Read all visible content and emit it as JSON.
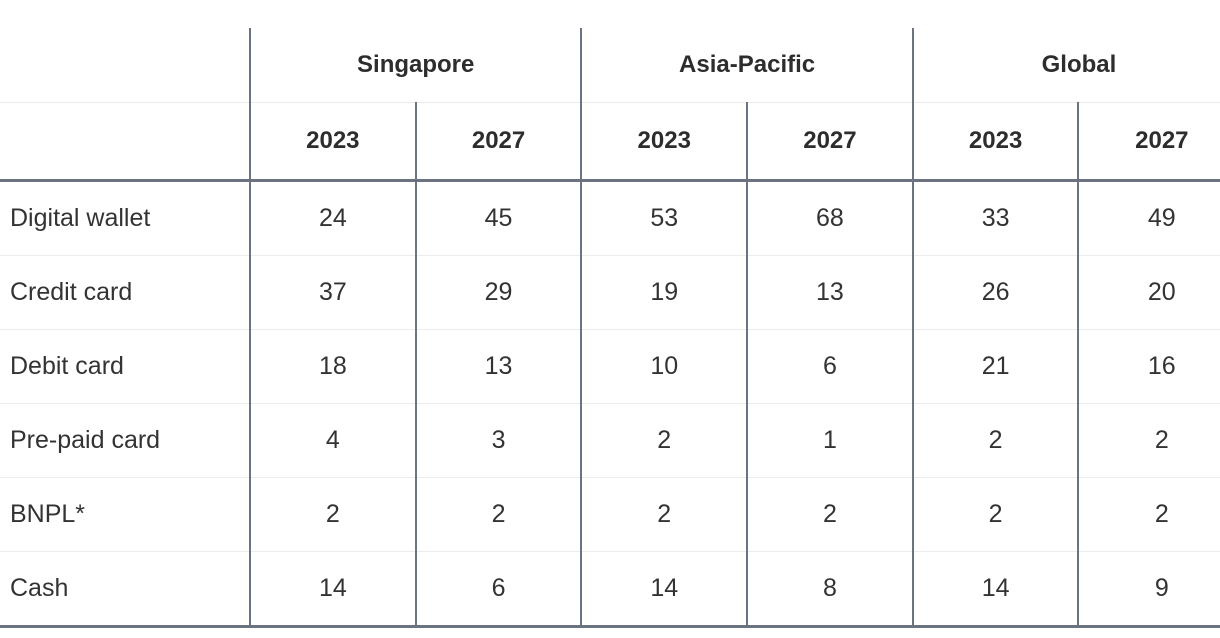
{
  "table": {
    "groups": [
      {
        "label": "Singapore"
      },
      {
        "label": "Asia-Pacific"
      },
      {
        "label": "Global"
      }
    ],
    "year_headers": [
      "2023",
      "2027",
      "2023",
      "2027",
      "2023",
      "2027"
    ],
    "rows": [
      {
        "label": "Digital wallet",
        "values": [
          "24",
          "45",
          "53",
          "68",
          "33",
          "49"
        ]
      },
      {
        "label": "Credit card",
        "values": [
          "37",
          "29",
          "19",
          "13",
          "26",
          "20"
        ]
      },
      {
        "label": "Debit card",
        "values": [
          "18",
          "13",
          "10",
          "6",
          "21",
          "16"
        ]
      },
      {
        "label": "Pre-paid card",
        "values": [
          "4",
          "3",
          "2",
          "1",
          "2",
          "2"
        ]
      },
      {
        "label": "BNPL*",
        "values": [
          "2",
          "2",
          "2",
          "2",
          "2",
          "2"
        ]
      },
      {
        "label": "Cash",
        "values": [
          "14",
          "6",
          "14",
          "8",
          "14",
          "9"
        ]
      }
    ],
    "colors": {
      "rule_dark": "#6b7280",
      "rule_light": "#ececec",
      "text": "#333333",
      "header_text": "#2d2d2d"
    }
  },
  "chart_data": {
    "type": "table",
    "title": "",
    "column_groups": [
      "Singapore",
      "Asia-Pacific",
      "Global"
    ],
    "columns": [
      "Singapore 2023",
      "Singapore 2027",
      "Asia-Pacific 2023",
      "Asia-Pacific 2027",
      "Global 2023",
      "Global 2027"
    ],
    "categories": [
      "Digital wallet",
      "Credit card",
      "Debit card",
      "Pre-paid card",
      "BNPL*",
      "Cash"
    ],
    "series": [
      {
        "name": "Singapore 2023",
        "values": [
          24,
          37,
          18,
          4,
          2,
          14
        ]
      },
      {
        "name": "Singapore 2027",
        "values": [
          45,
          29,
          13,
          3,
          2,
          6
        ]
      },
      {
        "name": "Asia-Pacific 2023",
        "values": [
          53,
          19,
          10,
          2,
          2,
          14
        ]
      },
      {
        "name": "Asia-Pacific 2027",
        "values": [
          68,
          13,
          6,
          1,
          2,
          8
        ]
      },
      {
        "name": "Global 2023",
        "values": [
          33,
          26,
          21,
          2,
          2,
          14
        ]
      },
      {
        "name": "Global 2027",
        "values": [
          49,
          20,
          16,
          2,
          2,
          9
        ]
      }
    ]
  }
}
